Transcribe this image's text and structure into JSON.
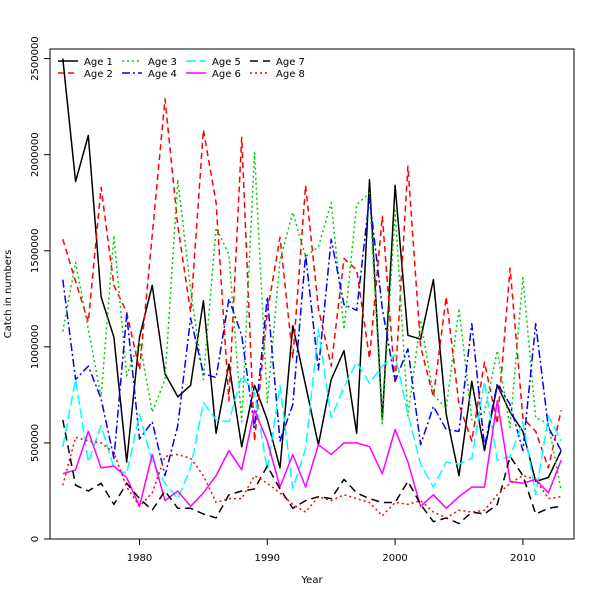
{
  "chart_data": {
    "type": "line",
    "title": "",
    "xlabel": "Year",
    "ylabel": "Catch in numbers",
    "xlim": [
      1973,
      2014
    ],
    "ylim": [
      0,
      2550000
    ],
    "xticks": [
      1980,
      1990,
      2000,
      2010
    ],
    "yticks": [
      0,
      500000,
      1000000,
      1500000,
      2000000,
      2500000
    ],
    "legend_position": "top-left",
    "grid": false,
    "x": [
      1974,
      1975,
      1976,
      1977,
      1978,
      1979,
      1980,
      1981,
      1982,
      1983,
      1984,
      1985,
      1986,
      1987,
      1988,
      1989,
      1990,
      1991,
      1992,
      1993,
      1994,
      1995,
      1996,
      1997,
      1998,
      1999,
      2000,
      2001,
      2002,
      2003,
      2004,
      2005,
      2006,
      2007,
      2008,
      2009,
      2010,
      2011,
      2012,
      2013
    ],
    "series": [
      {
        "name": "Age 1",
        "color": "#000000",
        "dash": "solid",
        "values": [
          2500000,
          1860000,
          2100000,
          1260000,
          1050000,
          400000,
          1050000,
          1320000,
          860000,
          740000,
          800000,
          1240000,
          550000,
          910000,
          480000,
          800000,
          620000,
          370000,
          1110000,
          800000,
          490000,
          830000,
          980000,
          550000,
          1870000,
          620000,
          1840000,
          1060000,
          1040000,
          1350000,
          650000,
          330000,
          820000,
          460000,
          800000,
          660000,
          560000,
          300000,
          320000,
          460000
        ]
      },
      {
        "name": "Age 2",
        "color": "#ff0000",
        "dash": "6,4",
        "values": [
          1560000,
          1340000,
          1130000,
          1830000,
          1320000,
          1180000,
          880000,
          1580000,
          2290000,
          1630000,
          1180000,
          2130000,
          1750000,
          720000,
          2090000,
          510000,
          1180000,
          1570000,
          940000,
          1840000,
          1200000,
          900000,
          1460000,
          1400000,
          940000,
          1680000,
          810000,
          1940000,
          1000000,
          740000,
          1260000,
          700000,
          510000,
          920000,
          600000,
          1410000,
          630000,
          560000,
          370000,
          670000
        ]
      },
      {
        "name": "Age 3",
        "color": "#00cd00",
        "dash": "2,3",
        "values": [
          1080000,
          1440000,
          1090000,
          740000,
          1580000,
          850000,
          1030000,
          660000,
          830000,
          1870000,
          1300000,
          830000,
          1620000,
          1480000,
          610000,
          2010000,
          710000,
          1450000,
          1700000,
          1470000,
          1520000,
          1750000,
          1090000,
          1740000,
          1800000,
          600000,
          1710000,
          640000,
          1140000,
          750000,
          680000,
          1200000,
          620000,
          660000,
          980000,
          580000,
          1360000,
          630000,
          600000,
          250000
        ]
      },
      {
        "name": "Age 4",
        "color": "#0000ff",
        "dash": "8,3,2,3",
        "values": [
          1350000,
          830000,
          900000,
          730000,
          420000,
          1170000,
          520000,
          610000,
          330000,
          590000,
          1150000,
          860000,
          840000,
          1250000,
          1060000,
          580000,
          1260000,
          510000,
          700000,
          1480000,
          880000,
          1560000,
          1220000,
          1190000,
          1780000,
          1200000,
          820000,
          990000,
          490000,
          690000,
          570000,
          560000,
          1120000,
          480000,
          810000,
          700000,
          460000,
          1120000,
          580000,
          460000
        ]
      },
      {
        "name": "Age 5",
        "color": "#00ffff",
        "dash": "10,4",
        "values": [
          480000,
          830000,
          400000,
          590000,
          370000,
          340000,
          650000,
          400000,
          290000,
          210000,
          370000,
          710000,
          620000,
          610000,
          850000,
          760000,
          360000,
          800000,
          260000,
          470000,
          1090000,
          630000,
          790000,
          920000,
          810000,
          900000,
          960000,
          650000,
          390000,
          270000,
          400000,
          390000,
          420000,
          820000,
          410000,
          430000,
          610000,
          230000,
          640000,
          510000
        ]
      },
      {
        "name": "Age 6",
        "color": "#ff00ff",
        "dash": "solid",
        "values": [
          340000,
          360000,
          560000,
          370000,
          380000,
          320000,
          170000,
          440000,
          200000,
          250000,
          170000,
          240000,
          330000,
          460000,
          360000,
          670000,
          510000,
          270000,
          440000,
          270000,
          490000,
          440000,
          500000,
          500000,
          480000,
          340000,
          570000,
          400000,
          170000,
          230000,
          160000,
          220000,
          270000,
          270000,
          720000,
          300000,
          290000,
          310000,
          240000,
          410000
        ]
      },
      {
        "name": "Age 7",
        "color": "#000000",
        "dash": "8,5",
        "values": [
          620000,
          280000,
          250000,
          290000,
          180000,
          290000,
          210000,
          150000,
          250000,
          160000,
          160000,
          130000,
          110000,
          230000,
          250000,
          260000,
          380000,
          260000,
          160000,
          200000,
          220000,
          210000,
          310000,
          240000,
          210000,
          190000,
          190000,
          300000,
          180000,
          90000,
          110000,
          80000,
          140000,
          130000,
          180000,
          430000,
          330000,
          130000,
          160000,
          170000
        ]
      },
      {
        "name": "Age 8",
        "color": "#ff0000",
        "dash": "2,3",
        "values": [
          280000,
          530000,
          510000,
          500000,
          450000,
          270000,
          170000,
          240000,
          430000,
          440000,
          420000,
          330000,
          190000,
          210000,
          210000,
          330000,
          290000,
          240000,
          180000,
          140000,
          220000,
          200000,
          230000,
          210000,
          190000,
          120000,
          190000,
          180000,
          200000,
          140000,
          110000,
          150000,
          140000,
          150000,
          230000,
          290000,
          330000,
          310000,
          210000,
          220000
        ]
      }
    ]
  }
}
